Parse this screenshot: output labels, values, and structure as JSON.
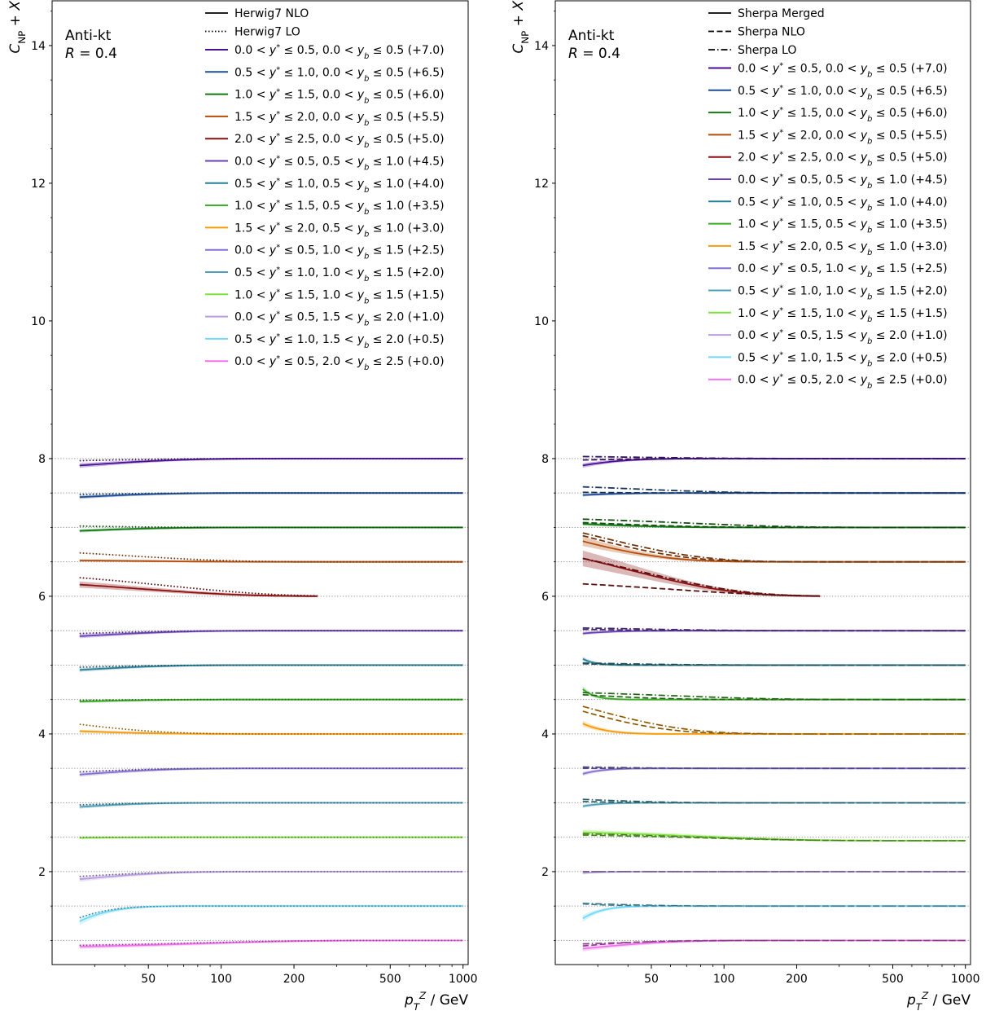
{
  "chart_data": [
    {
      "type": "line",
      "panel": "left",
      "annotation": [
        "Anti-kt",
        "R = 0.4"
      ],
      "xlabel": "p_T^Z / GeV",
      "ylabel": "C_NP + X",
      "xscale": "log",
      "xlim": [
        20,
        1050
      ],
      "ylim": [
        0.65,
        14.65
      ],
      "xticks": [
        50,
        100,
        200,
        500,
        1000
      ],
      "xtick_labels": [
        "50",
        "100",
        "200",
        "500",
        "1000"
      ],
      "yticks": [
        2,
        4,
        6,
        8,
        10,
        12,
        14
      ],
      "ytick_labels": [
        "2",
        "4",
        "6",
        "8",
        "10",
        "12",
        "14"
      ],
      "legend_location": "top-right",
      "style_legend": [
        {
          "label": "Herwig7 NLO",
          "dash": "solid"
        },
        {
          "label": "Herwig7 LO",
          "dash": "dotted"
        }
      ],
      "series": [
        {
          "name": "0.0 < y* ≤ 0.5, 0.0 < y_b ≤ 0.5 (+7.0)",
          "offset": 7.0,
          "color": "#4b0e96",
          "x_end": 1000,
          "curves": [
            {
              "style": "solid",
              "start": 0.9,
              "decay": 25
            },
            {
              "style": "dotted",
              "start": 0.97,
              "decay": 25
            }
          ]
        },
        {
          "name": "0.5 < y* ≤ 1.0, 0.0 < y_b ≤ 0.5 (+6.5)",
          "offset": 6.5,
          "color": "#1f4e96",
          "x_end": 1000,
          "curves": [
            {
              "style": "solid",
              "start": 0.94,
              "decay": 20
            },
            {
              "style": "dotted",
              "start": 0.98,
              "decay": 20
            }
          ]
        },
        {
          "name": "1.0 < y* ≤ 1.5, 0.0 < y_b ≤ 0.5 (+6.0)",
          "offset": 6.0,
          "color": "#137a13",
          "x_end": 1000,
          "curves": [
            {
              "style": "solid",
              "start": 0.95,
              "decay": 20
            },
            {
              "style": "dotted",
              "start": 1.02,
              "decay": 20
            }
          ]
        },
        {
          "name": "1.5 < y* ≤ 2.0, 0.0 < y_b ≤ 0.5 (+5.5)",
          "offset": 5.5,
          "color": "#b54e0c",
          "x_end": 1000,
          "curves": [
            {
              "style": "solid",
              "start": 1.02,
              "decay": 40
            },
            {
              "style": "dotted",
              "start": 1.13,
              "decay": 40
            }
          ]
        },
        {
          "name": "2.0 < y* ≤ 2.5, 0.0 < y_b ≤ 0.5 (+5.0)",
          "offset": 5.0,
          "color": "#8b0f0f",
          "x_end": 250,
          "curves": [
            {
              "style": "solid",
              "start": 1.17,
              "decay": 45
            },
            {
              "style": "dotted",
              "start": 1.27,
              "decay": 60
            }
          ]
        },
        {
          "name": "0.0 < y* ≤ 0.5, 0.5 < y_b ≤ 1.0 (+4.5)",
          "offset": 4.5,
          "color": "#6a3fb8",
          "x_end": 1000,
          "curves": [
            {
              "style": "solid",
              "start": 0.92,
              "decay": 25
            },
            {
              "style": "dotted",
              "start": 0.96,
              "decay": 25
            }
          ]
        },
        {
          "name": "0.5 < y* ≤ 1.0, 0.5 < y_b ≤ 1.0 (+4.0)",
          "offset": 4.0,
          "color": "#2a7f98",
          "x_end": 1000,
          "curves": [
            {
              "style": "solid",
              "start": 0.93,
              "decay": 20
            },
            {
              "style": "dotted",
              "start": 0.97,
              "decay": 20
            }
          ]
        },
        {
          "name": "1.0 < y* ≤ 1.5, 0.5 < y_b ≤ 1.0 (+3.5)",
          "offset": 3.5,
          "color": "#3aaa24",
          "x_end": 1000,
          "curves": [
            {
              "style": "solid",
              "start": 0.97,
              "decay": 20
            },
            {
              "style": "dotted",
              "start": 0.99,
              "decay": 20
            }
          ]
        },
        {
          "name": "1.5 < y* ≤ 2.0, 0.5 < y_b ≤ 1.0 (+3.0)",
          "offset": 3.0,
          "color": "#f59b0c",
          "x_end": 1000,
          "curves": [
            {
              "style": "solid",
              "start": 1.04,
              "decay": 20
            },
            {
              "style": "dotted",
              "start": 1.14,
              "decay": 20
            }
          ]
        },
        {
          "name": "0.0 < y* ≤ 0.5, 1.0 < y_b ≤ 1.5 (+2.5)",
          "offset": 2.5,
          "color": "#8470d2",
          "x_end": 1000,
          "curves": [
            {
              "style": "solid",
              "start": 0.91,
              "decay": 20
            },
            {
              "style": "dotted",
              "start": 0.95,
              "decay": 20
            }
          ]
        },
        {
          "name": "0.5 < y* ≤ 1.0, 1.0 < y_b ≤ 1.5 (+2.0)",
          "offset": 2.0,
          "color": "#4ea0b8",
          "x_end": 1000,
          "curves": [
            {
              "style": "solid",
              "start": 0.94,
              "decay": 15
            },
            {
              "style": "dotted",
              "start": 0.97,
              "decay": 15
            }
          ]
        },
        {
          "name": "1.0 < y* ≤ 1.5, 1.0 < y_b ≤ 1.5 (+1.5)",
          "offset": 1.5,
          "color": "#7ee03c",
          "x_end": 1000,
          "curves": [
            {
              "style": "solid",
              "start": 0.99,
              "decay": 15
            },
            {
              "style": "dotted",
              "start": 1.0,
              "decay": 15
            }
          ]
        },
        {
          "name": "0.0 < y* ≤ 0.5, 1.5 < y_b ≤ 2.0 (+1.0)",
          "offset": 1.0,
          "color": "#b89ee0",
          "x_end": 1000,
          "curves": [
            {
              "style": "solid",
              "start": 0.89,
              "decay": 20
            },
            {
              "style": "dotted",
              "start": 0.93,
              "decay": 20
            }
          ]
        },
        {
          "name": "0.5 < y* ≤ 1.0, 1.5 < y_b ≤ 2.0 (+0.5)",
          "offset": 0.5,
          "color": "#72d8f8",
          "x_end": 1000,
          "curves": [
            {
              "style": "solid",
              "start": 0.78,
              "decay": 8
            },
            {
              "style": "dotted",
              "start": 0.83,
              "decay": 8
            }
          ]
        },
        {
          "name": "0.0 < y* ≤ 0.5, 2.0 < y_b ≤ 2.5 (+0.0)",
          "offset": 0.0,
          "color": "#f270f0",
          "x_end": 1000,
          "curves": [
            {
              "style": "solid",
              "start": 0.91,
              "decay": 80
            },
            {
              "style": "dotted",
              "start": 0.93,
              "decay": 80
            }
          ]
        }
      ]
    },
    {
      "type": "line",
      "panel": "right",
      "annotation": [
        "Anti-kt",
        "R = 0.4"
      ],
      "xlabel": "p_T^Z / GeV",
      "ylabel": "C_NP + X",
      "xscale": "log",
      "xlim": [
        20,
        1050
      ],
      "ylim": [
        0.65,
        14.65
      ],
      "xticks": [
        50,
        100,
        200,
        500,
        1000
      ],
      "xtick_labels": [
        "50",
        "100",
        "200",
        "500",
        "1000"
      ],
      "yticks": [
        2,
        4,
        6,
        8,
        10,
        12,
        14
      ],
      "ytick_labels": [
        "2",
        "4",
        "6",
        "8",
        "10",
        "12",
        "14"
      ],
      "legend_location": "top-right",
      "style_legend": [
        {
          "label": "Sherpa Merged",
          "dash": "solid"
        },
        {
          "label": "Sherpa NLO",
          "dash": "dashed"
        },
        {
          "label": "Sherpa LO",
          "dash": "dashdot"
        }
      ],
      "series": [
        {
          "name": "0.0 < y* ≤ 0.5, 0.0 < y_b ≤ 0.5 (+7.0)",
          "offset": 7.0,
          "color": "#4b0e96",
          "x_end": 1000,
          "curves": [
            {
              "style": "solid",
              "start": 0.9,
              "decay": 10
            },
            {
              "style": "dashed",
              "start": 0.98,
              "decay": 15
            },
            {
              "style": "dashdot",
              "start": 1.03,
              "decay": 40
            }
          ]
        },
        {
          "name": "0.5 < y* ≤ 1.0, 0.0 < y_b ≤ 0.5 (+6.5)",
          "offset": 6.5,
          "color": "#1f4e96",
          "x_end": 1000,
          "curves": [
            {
              "style": "solid",
              "start": 0.97,
              "decay": 10
            },
            {
              "style": "dashed",
              "start": 1.01,
              "decay": 15
            },
            {
              "style": "dashdot",
              "start": 1.09,
              "decay": 40
            }
          ]
        },
        {
          "name": "1.0 < y* ≤ 1.5, 0.0 < y_b ≤ 0.5 (+6.0)",
          "offset": 6.0,
          "color": "#137a13",
          "x_end": 1000,
          "curves": [
            {
              "style": "solid",
              "start": 1.05,
              "decay": 20
            },
            {
              "style": "dashed",
              "start": 1.07,
              "decay": 30
            },
            {
              "style": "dashdot",
              "start": 1.12,
              "decay": 70
            }
          ]
        },
        {
          "name": "1.5 < y* ≤ 2.0, 0.0 < y_b ≤ 0.5 (+5.5)",
          "offset": 5.5,
          "color": "#b54e0c",
          "x_end": 1000,
          "curves": [
            {
              "style": "solid",
              "start": 1.3,
              "decay": 20
            },
            {
              "style": "dashed",
              "start": 1.38,
              "decay": 25
            },
            {
              "style": "dashdot",
              "start": 1.42,
              "decay": 30
            }
          ]
        },
        {
          "name": "2.0 < y* ≤ 2.5, 0.0 < y_b ≤ 0.5 (+5.0)",
          "offset": 5.0,
          "color": "#8b0f0f",
          "x_end": 250,
          "curves": [
            {
              "style": "solid",
              "start": 1.55,
              "decay": 40
            },
            {
              "style": "dashed",
              "start": 1.18,
              "decay": 60
            },
            {
              "style": "dashdot",
              "start": 1.55,
              "decay": 45
            }
          ]
        },
        {
          "name": "0.0 < y* ≤ 0.5, 0.5 < y_b ≤ 1.0 (+4.5)",
          "offset": 4.5,
          "color": "#6a3fb8",
          "x_end": 1000,
          "curves": [
            {
              "style": "solid",
              "start": 0.96,
              "decay": 8
            },
            {
              "style": "dashed",
              "start": 1.02,
              "decay": 15
            },
            {
              "style": "dashdot",
              "start": 1.04,
              "decay": 40
            }
          ]
        },
        {
          "name": "0.5 < y* ≤ 1.0, 0.5 < y_b ≤ 1.0 (+4.0)",
          "offset": 4.0,
          "color": "#2a7f98",
          "x_end": 1000,
          "curves": [
            {
              "style": "solid",
              "start": 1.09,
              "decay": 3
            },
            {
              "style": "dashed",
              "start": 1.02,
              "decay": 10
            },
            {
              "style": "dashdot",
              "start": 1.03,
              "decay": 30
            }
          ]
        },
        {
          "name": "1.0 < y* ≤ 1.5, 0.5 < y_b ≤ 1.0 (+3.5)",
          "offset": 3.5,
          "color": "#3aaa24",
          "x_end": 1000,
          "curves": [
            {
              "style": "solid",
              "start": 1.15,
              "decay": 3
            },
            {
              "style": "dashed",
              "start": 1.07,
              "decay": 20
            },
            {
              "style": "dashdot",
              "start": 1.1,
              "decay": 60
            }
          ]
        },
        {
          "name": "1.5 < y* ≤ 2.0, 0.5 < y_b ≤ 1.0 (+3.0)",
          "offset": 3.0,
          "color": "#f59b0c",
          "x_end": 1000,
          "curves": [
            {
              "style": "solid",
              "start": 1.15,
              "decay": 6
            },
            {
              "style": "dashed",
              "start": 1.33,
              "decay": 20
            },
            {
              "style": "dashdot",
              "start": 1.4,
              "decay": 25
            }
          ]
        },
        {
          "name": "0.0 < y* ≤ 0.5, 1.0 < y_b ≤ 1.5 (+2.5)",
          "offset": 2.5,
          "color": "#8470d2",
          "x_end": 1000,
          "curves": [
            {
              "style": "solid",
              "start": 0.92,
              "decay": 5
            },
            {
              "style": "dashed",
              "start": 1.0,
              "decay": 10
            },
            {
              "style": "dashdot",
              "start": 1.02,
              "decay": 20
            }
          ]
        },
        {
          "name": "0.5 < y* ≤ 1.0, 1.0 < y_b ≤ 1.5 (+2.0)",
          "offset": 2.0,
          "color": "#4ea0b8",
          "x_end": 1000,
          "curves": [
            {
              "style": "solid",
              "start": 0.95,
              "decay": 5
            },
            {
              "style": "dashed",
              "start": 1.02,
              "decay": 10
            },
            {
              "style": "dashdot",
              "start": 1.05,
              "decay": 20
            }
          ]
        },
        {
          "name": "1.0 < y* ≤ 1.5, 1.0 < y_b ≤ 1.5 (+1.5)",
          "offset": 1.5,
          "color": "#7ee03c",
          "x_end": 1000,
          "curves": [
            {
              "style": "solid",
              "start": 1.07,
              "decay": 80,
              "end": 0.95
            },
            {
              "style": "dashed",
              "start": 1.03,
              "decay": 80,
              "end": 0.95
            },
            {
              "style": "dashdot",
              "start": 1.05,
              "decay": 80,
              "end": 0.95
            }
          ]
        },
        {
          "name": "0.0 < y* ≤ 0.5, 1.5 < y_b ≤ 2.0 (+1.0)",
          "offset": 1.0,
          "color": "#b89ee0",
          "x_end": 1000,
          "curves": [
            {
              "style": "solid",
              "start": 0.98,
              "decay": 5
            },
            {
              "style": "dashed",
              "start": 1.0,
              "decay": 10
            },
            {
              "style": "dashdot",
              "start": 1.0,
              "decay": 20
            }
          ]
        },
        {
          "name": "0.5 < y* ≤ 1.0, 1.5 < y_b ≤ 2.0 (+0.5)",
          "offset": 0.5,
          "color": "#72d8f8",
          "x_end": 1000,
          "curves": [
            {
              "style": "solid",
              "start": 0.82,
              "decay": 5
            },
            {
              "style": "dashed",
              "start": 1.03,
              "decay": 10
            },
            {
              "style": "dashdot",
              "start": 1.04,
              "decay": 20
            }
          ]
        },
        {
          "name": "0.0 < y* ≤ 0.5, 2.0 < y_b ≤ 2.5 (+0.0)",
          "offset": 0.0,
          "color": "#f270f0",
          "x_end": 1000,
          "curves": [
            {
              "style": "solid",
              "start": 0.88,
              "decay": 20
            },
            {
              "style": "dashed",
              "start": 0.92,
              "decay": 15
            },
            {
              "style": "dashdot",
              "start": 0.95,
              "decay": 25
            }
          ]
        }
      ]
    }
  ]
}
